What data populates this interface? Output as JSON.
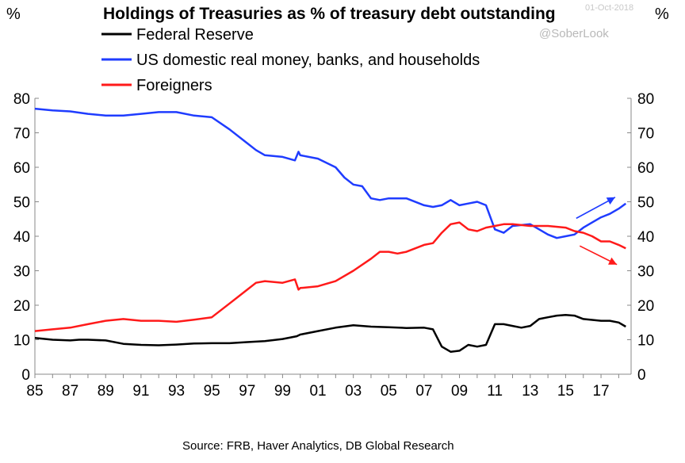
{
  "chart_data": {
    "type": "line",
    "title": "Holdings of Treasuries as % of treasury debt outstanding",
    "date_stamp": "01-Oct-2018",
    "watermark": "@SoberLook",
    "source": "Source: FRB, Haver Analytics,  DB Global  Research",
    "ylabel_left": "%",
    "ylabel_right": "%",
    "ylim": [
      0,
      80
    ],
    "yticks": [
      "0",
      "10",
      "20",
      "30",
      "40",
      "50",
      "60",
      "70",
      "80"
    ],
    "xlim": [
      1985,
      2018.7
    ],
    "xtick_labels": [
      "85",
      "87",
      "89",
      "91",
      "93",
      "95",
      "97",
      "99",
      "01",
      "03",
      "05",
      "07",
      "09",
      "11",
      "13",
      "15",
      "17"
    ],
    "grid": false,
    "legend_position": "top-left",
    "series": [
      {
        "name": "Federal Reserve",
        "color": "#000000",
        "x": [
          1985,
          1986,
          1987,
          1987.5,
          1988,
          1989,
          1990,
          1991,
          1992,
          1993,
          1994,
          1995,
          1996,
          1997,
          1998,
          1999,
          1999.8,
          2000,
          2001,
          2002,
          2003,
          2004,
          2005,
          2006,
          2007,
          2007.5,
          2008,
          2008.5,
          2009,
          2009.5,
          2010,
          2010.5,
          2011,
          2011.5,
          2012,
          2012.5,
          2013,
          2013.5,
          2014,
          2014.5,
          2015,
          2015.5,
          2016,
          2017,
          2017.5,
          2018,
          2018.4
        ],
        "y": [
          10.5,
          10,
          9.8,
          10,
          10,
          9.8,
          8.8,
          8.5,
          8.4,
          8.6,
          8.9,
          9,
          9,
          9.3,
          9.6,
          10.2,
          11,
          11.5,
          12.5,
          13.5,
          14.2,
          13.8,
          13.6,
          13.4,
          13.5,
          13,
          8,
          6.5,
          6.8,
          8.5,
          8,
          8.5,
          14.5,
          14.5,
          14,
          13.5,
          14,
          16,
          16.5,
          17,
          17.2,
          17,
          16,
          15.5,
          15.5,
          15,
          13.8
        ]
      },
      {
        "name": "US domestic real money, banks, and households",
        "color": "#1f3cff",
        "x": [
          1985,
          1986,
          1987,
          1988,
          1989,
          1990,
          1991,
          1992,
          1993,
          1994,
          1995,
          1996,
          1997,
          1997.5,
          1998,
          1999,
          1999.7,
          1999.9,
          2000,
          2001,
          2002,
          2002.5,
          2003,
          2003.5,
          2004,
          2004.5,
          2005,
          2006,
          2007,
          2007.5,
          2008,
          2008.5,
          2009,
          2009.5,
          2010,
          2010.5,
          2011,
          2011.5,
          2012,
          2013,
          2013.5,
          2014,
          2014.5,
          2015,
          2015.5,
          2016,
          2016.5,
          2017,
          2017.5,
          2018,
          2018.4
        ],
        "y": [
          77,
          76.5,
          76.2,
          75.5,
          75,
          75,
          75.5,
          76,
          76,
          75,
          74.5,
          71,
          67,
          65,
          63.5,
          63,
          62,
          64.5,
          63.5,
          62.5,
          60,
          57,
          55,
          54.5,
          51,
          50.5,
          51,
          51,
          49,
          48.5,
          49,
          50.5,
          49,
          49.5,
          50,
          49,
          42,
          41,
          43,
          43.5,
          42,
          40.5,
          39.5,
          40,
          40.5,
          42.5,
          44,
          45.5,
          46.5,
          48,
          49.5
        ]
      },
      {
        "name": "Foreigners",
        "color": "#ff1a1a",
        "x": [
          1985,
          1986,
          1987,
          1988,
          1989,
          1990,
          1991,
          1992,
          1993,
          1994,
          1995,
          1996,
          1997,
          1997.5,
          1998,
          1999,
          1999.7,
          1999.9,
          2000,
          2001,
          2002,
          2003,
          2004,
          2004.5,
          2005,
          2005.5,
          2006,
          2007,
          2007.5,
          2008,
          2008.5,
          2009,
          2009.5,
          2010,
          2010.5,
          2011,
          2011.5,
          2012,
          2013,
          2014,
          2015,
          2015.5,
          2016,
          2016.5,
          2017,
          2017.5,
          2018,
          2018.4
        ],
        "y": [
          12.5,
          13,
          13.5,
          14.5,
          15.5,
          16,
          15.5,
          15.5,
          15.2,
          15.8,
          16.5,
          20.5,
          24.5,
          26.5,
          27,
          26.5,
          27.5,
          24.5,
          25,
          25.5,
          27,
          30,
          33.5,
          35.5,
          35.5,
          35,
          35.5,
          37.5,
          38,
          41,
          43.5,
          44,
          42,
          41.5,
          42.5,
          43,
          43.5,
          43.5,
          43,
          43,
          42.5,
          41.5,
          41,
          40,
          38.5,
          38.5,
          37.5,
          36.5
        ]
      }
    ],
    "annotations": [
      {
        "type": "arrow",
        "color": "#1f3cff",
        "x1": 2015.6,
        "y1": 45.2,
        "x2": 2017.8,
        "y2": 51.3
      },
      {
        "type": "arrow",
        "color": "#ff1a1a",
        "x1": 2015.8,
        "y1": 37.2,
        "x2": 2017.9,
        "y2": 31.8
      }
    ]
  }
}
